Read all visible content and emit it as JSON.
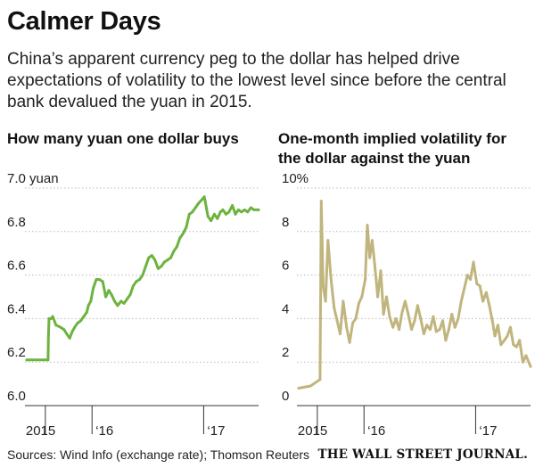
{
  "header": {
    "title": "Calmer Days",
    "subtitle": "China’s apparent currency peg to the dollar has helped drive expectations of volatility to the lowest level since before the central bank devalued the yuan in 2015."
  },
  "footer": {
    "source": "Sources: Wind Info (exchange rate); Thomson Reuters",
    "logo": "THE WALL STREET JOURNAL."
  },
  "colors": {
    "left_series": "#6db33f",
    "right_series": "#c1b57e",
    "grid": "#bbbbbb",
    "axis": "#333333"
  },
  "chart_data": [
    {
      "type": "line",
      "title": "How many yuan one dollar buys",
      "xlabel": "",
      "ylabel": "",
      "ylim": [
        6.0,
        7.0
      ],
      "xlim": [
        "2015-06-01",
        "2017-06-30"
      ],
      "yticks": [
        6.0,
        6.2,
        6.4,
        6.6,
        6.8,
        7.0
      ],
      "ytick_labels": [
        "6.0",
        "6.2",
        "6.4",
        "6.6",
        "6.8",
        "7.0 yuan"
      ],
      "xticks": [
        "2015-08-01",
        "2016-01-01",
        "2017-01-01"
      ],
      "xtick_labels": [
        "2015",
        "‘16",
        "‘17"
      ],
      "grid": true,
      "series": [
        {
          "x": [
            "2015-06-01",
            "2015-08-10",
            "2015-08-11",
            "2015-08-13",
            "2015-08-20",
            "2015-08-25",
            "2015-09-05",
            "2015-09-20",
            "2015-10-01",
            "2015-10-10",
            "2015-10-20",
            "2015-10-28",
            "2015-11-05",
            "2015-11-15",
            "2015-11-25",
            "2015-12-05",
            "2015-12-15",
            "2015-12-20",
            "2015-12-28",
            "2016-01-05",
            "2016-01-15",
            "2016-01-25",
            "2016-02-05",
            "2016-02-15",
            "2016-02-25",
            "2016-03-05",
            "2016-03-15",
            "2016-03-25",
            "2016-04-05",
            "2016-04-15",
            "2016-04-25",
            "2016-05-05",
            "2016-05-15",
            "2016-05-25",
            "2016-06-05",
            "2016-06-15",
            "2016-06-25",
            "2016-07-05",
            "2016-07-15",
            "2016-07-25",
            "2016-08-05",
            "2016-08-15",
            "2016-08-25",
            "2016-09-05",
            "2016-09-15",
            "2016-09-25",
            "2016-10-05",
            "2016-10-15",
            "2016-10-25",
            "2016-11-05",
            "2016-11-15",
            "2016-11-25",
            "2016-12-05",
            "2016-12-15",
            "2016-12-28",
            "2017-01-03",
            "2017-01-06",
            "2017-01-15",
            "2017-01-25",
            "2017-02-05",
            "2017-02-15",
            "2017-02-25",
            "2017-03-05",
            "2017-03-15",
            "2017-03-25",
            "2017-04-05",
            "2017-04-15",
            "2017-04-25",
            "2017-05-05",
            "2017-05-15",
            "2017-05-25",
            "2017-06-05",
            "2017-06-15",
            "2017-06-30"
          ],
          "values": [
            6.21,
            6.21,
            6.32,
            6.4,
            6.4,
            6.41,
            6.37,
            6.36,
            6.35,
            6.33,
            6.31,
            6.34,
            6.36,
            6.38,
            6.39,
            6.41,
            6.43,
            6.46,
            6.48,
            6.54,
            6.58,
            6.58,
            6.57,
            6.5,
            6.53,
            6.51,
            6.48,
            6.46,
            6.48,
            6.47,
            6.49,
            6.51,
            6.55,
            6.57,
            6.58,
            6.6,
            6.64,
            6.68,
            6.69,
            6.67,
            6.63,
            6.64,
            6.66,
            6.67,
            6.68,
            6.71,
            6.73,
            6.77,
            6.79,
            6.82,
            6.88,
            6.89,
            6.91,
            6.93,
            6.95,
            6.96,
            6.94,
            6.87,
            6.85,
            6.88,
            6.86,
            6.89,
            6.9,
            6.88,
            6.89,
            6.92,
            6.88,
            6.9,
            6.89,
            6.9,
            6.89,
            6.91,
            6.9,
            6.9
          ]
        }
      ]
    },
    {
      "type": "line",
      "title": "One-month implied volatility for the dollar against the yuan",
      "xlabel": "",
      "ylabel": "",
      "ylim": [
        0,
        10
      ],
      "xlim": [
        "2015-06-01",
        "2017-06-30"
      ],
      "yticks": [
        0,
        2,
        4,
        6,
        8,
        10
      ],
      "ytick_labels": [
        "0",
        "2",
        "4",
        "6",
        "8",
        "10%"
      ],
      "xticks": [
        "2015-08-01",
        "2016-01-01",
        "2017-01-01"
      ],
      "xtick_labels": [
        "2015",
        "‘16",
        "‘17"
      ],
      "grid": true,
      "series": [
        {
          "x": [
            "2015-06-01",
            "2015-07-10",
            "2015-08-10",
            "2015-08-14",
            "2015-08-20",
            "2015-08-28",
            "2015-09-05",
            "2015-09-15",
            "2015-09-25",
            "2015-10-05",
            "2015-10-15",
            "2015-10-25",
            "2015-11-05",
            "2015-11-15",
            "2015-11-25",
            "2015-12-05",
            "2015-12-15",
            "2015-12-25",
            "2016-01-05",
            "2016-01-12",
            "2016-01-20",
            "2016-01-28",
            "2016-02-05",
            "2016-02-15",
            "2016-02-25",
            "2016-03-05",
            "2016-03-15",
            "2016-03-25",
            "2016-04-05",
            "2016-04-15",
            "2016-04-25",
            "2016-05-05",
            "2016-05-15",
            "2016-05-25",
            "2016-06-05",
            "2016-06-15",
            "2016-06-25",
            "2016-07-05",
            "2016-07-15",
            "2016-07-25",
            "2016-08-05",
            "2016-08-15",
            "2016-08-25",
            "2016-09-05",
            "2016-09-15",
            "2016-09-25",
            "2016-10-05",
            "2016-10-15",
            "2016-10-25",
            "2016-11-05",
            "2016-11-15",
            "2016-11-25",
            "2016-12-05",
            "2016-12-15",
            "2016-12-25",
            "2017-01-05",
            "2017-01-15",
            "2017-01-25",
            "2017-02-05",
            "2017-02-15",
            "2017-02-25",
            "2017-03-05",
            "2017-03-15",
            "2017-03-25",
            "2017-04-05",
            "2017-04-15",
            "2017-04-25",
            "2017-05-05",
            "2017-05-15",
            "2017-05-25",
            "2017-06-05",
            "2017-06-15",
            "2017-06-30"
          ],
          "values": [
            0.8,
            0.9,
            1.2,
            9.4,
            5.5,
            4.8,
            7.6,
            5.8,
            4.5,
            3.9,
            3.3,
            4.8,
            3.6,
            2.9,
            3.8,
            4.0,
            4.7,
            5.0,
            5.8,
            8.3,
            6.8,
            7.6,
            6.5,
            5.0,
            6.2,
            4.2,
            5.0,
            4.1,
            3.6,
            4.0,
            3.5,
            4.3,
            4.8,
            4.2,
            3.5,
            3.9,
            4.6,
            4.0,
            3.3,
            3.7,
            3.5,
            4.1,
            3.4,
            3.5,
            3.9,
            3.0,
            3.5,
            4.2,
            3.6,
            4.0,
            4.8,
            5.4,
            6.0,
            5.8,
            6.6,
            5.6,
            5.5,
            4.8,
            5.2,
            4.6,
            3.9,
            3.2,
            3.7,
            2.8,
            3.0,
            3.2,
            3.6,
            2.8,
            2.7,
            3.0,
            2.0,
            2.3,
            1.8
          ]
        }
      ]
    }
  ]
}
